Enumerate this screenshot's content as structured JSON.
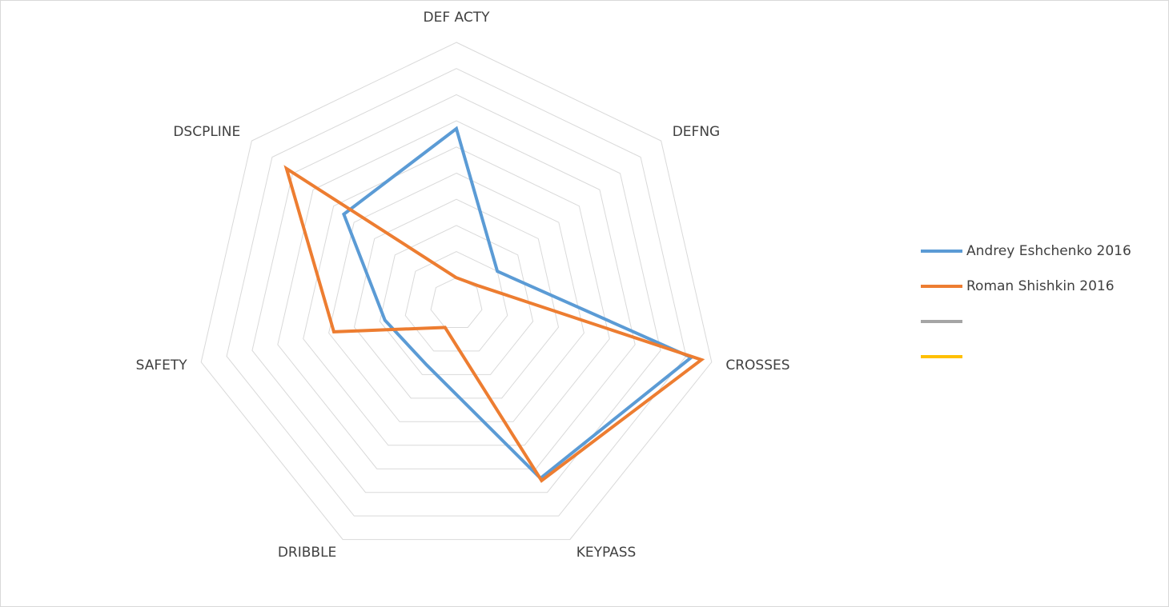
{
  "chart_data": {
    "type": "radar",
    "categories": [
      "DEF ACTY",
      "DEFNG",
      "CROSSES",
      "KEYPASS",
      "DRIBBLE",
      "SAFETY",
      "DSCPLINE"
    ],
    "series": [
      {
        "name": "Andrey Eshchenko 2016",
        "color": "#5b9bd5",
        "values": [
          6.7,
          2.0,
          9.2,
          7.4,
          2.6,
          2.8,
          5.5
        ]
      },
      {
        "name": "Roman Shishkin 2016",
        "color": "#ed7d31",
        "values": [
          1.0,
          1.1,
          9.6,
          7.5,
          1.0,
          4.8,
          8.3
        ]
      },
      {
        "color": "#a5a5a5",
        "values": [
          null,
          null,
          null,
          null,
          null,
          null,
          null
        ]
      },
      {
        "color": "#ffc000",
        "values": [
          null,
          null,
          null,
          null,
          null,
          null,
          null
        ]
      }
    ],
    "ylim": [
      0,
      10
    ],
    "yticks": [
      1,
      2,
      3,
      4,
      5,
      6,
      7,
      8,
      9,
      10
    ],
    "grid": true,
    "legend": "right"
  }
}
